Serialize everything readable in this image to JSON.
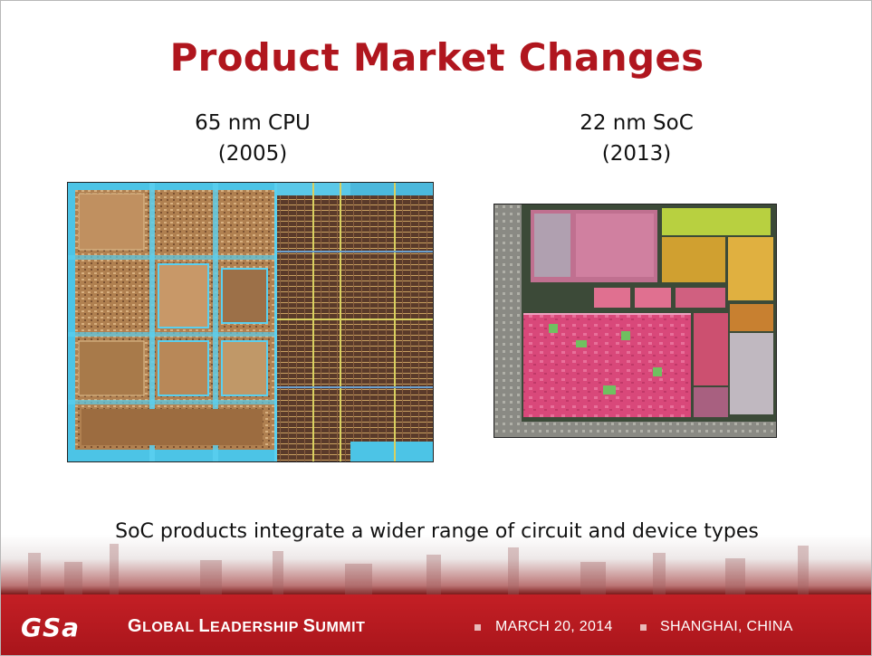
{
  "slide": {
    "title": "Product Market Changes",
    "left": {
      "line1": "65 nm CPU",
      "line2": "(2005)",
      "image_icon": "cpu-die-photo"
    },
    "right": {
      "line1": "22 nm SoC",
      "line2": "(2013)",
      "image_icon": "soc-die-photo"
    },
    "statement": "SoC products integrate a wider range of circuit and device types"
  },
  "footer": {
    "logo": "GSa",
    "event_G": "G",
    "event_1": "LOBAL ",
    "event_L": "L",
    "event_2": "EADERSHIP ",
    "event_S": "S",
    "event_3": "UMMIT",
    "date": "MARCH 20, 2014",
    "location": "SHANGHAI, CHINA"
  },
  "colors": {
    "title": "#b0161e",
    "footer_bg": "#b81a20"
  }
}
